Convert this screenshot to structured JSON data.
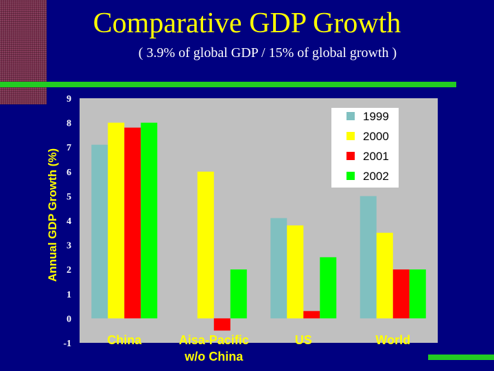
{
  "slide": {
    "title": "Comparative GDP Growth",
    "subtitle": "( 3.9% of global GDP / 15% of global growth )"
  },
  "colors": {
    "background": "#000080",
    "title": "#ffff00",
    "accent_bar": "#22cc22",
    "plot_area": "#c0c0c0"
  },
  "chart_data": {
    "type": "bar",
    "title": "",
    "xlabel": "",
    "ylabel": "Annual GDP Growth (%)",
    "ylim": [
      -1,
      9
    ],
    "yticks": [
      "-1",
      "0",
      "1",
      "2",
      "3",
      "4",
      "5",
      "6",
      "7",
      "8",
      "9"
    ],
    "categories": [
      [
        "China"
      ],
      [
        "Aisa-Pacific",
        "w/o China"
      ],
      [
        "US"
      ],
      [
        "World"
      ]
    ],
    "series": [
      {
        "name": "1999",
        "color": "#80c0c0",
        "values": [
          7.1,
          null,
          4.1,
          5.0
        ]
      },
      {
        "name": "2000",
        "color": "#ffff00",
        "values": [
          8.0,
          6.0,
          3.8,
          3.5
        ]
      },
      {
        "name": "2001",
        "color": "#ff0000",
        "values": [
          7.8,
          -0.5,
          0.3,
          2.0
        ]
      },
      {
        "name": "2002",
        "color": "#00ff00",
        "values": [
          8.0,
          2.0,
          2.5,
          2.0
        ]
      }
    ],
    "grid": false,
    "legend_position": "top-right"
  }
}
